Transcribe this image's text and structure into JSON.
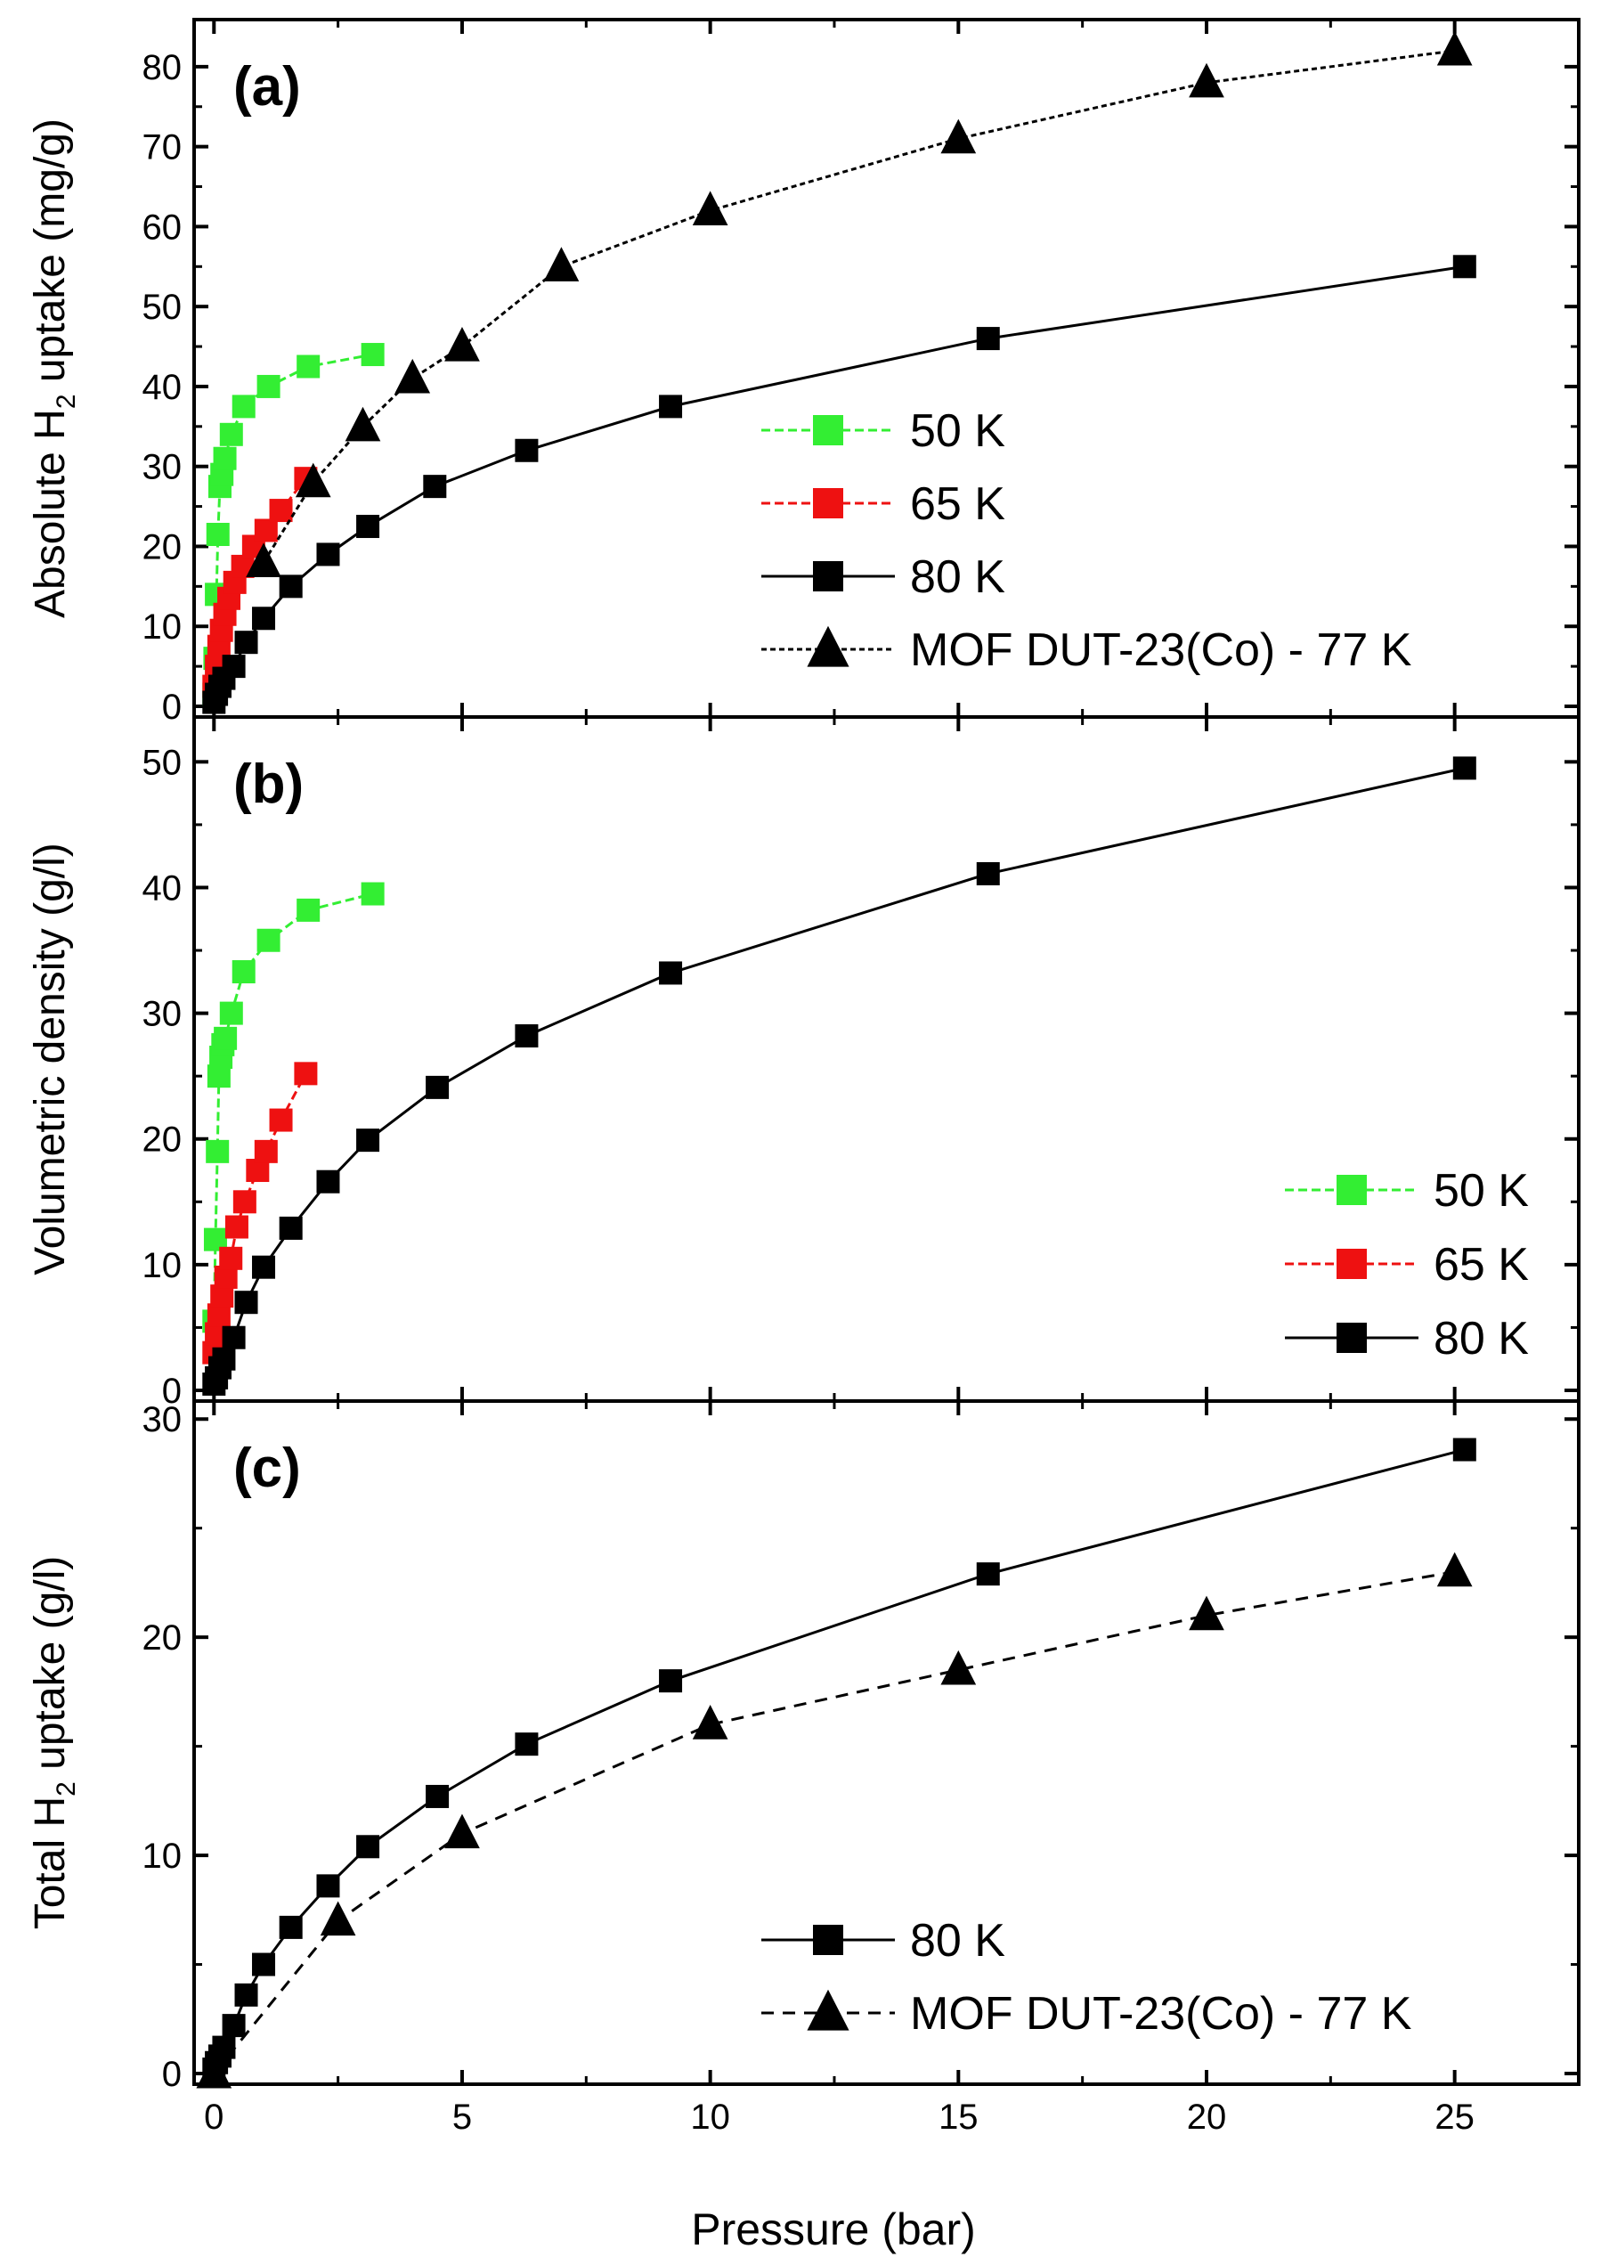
{
  "figure": {
    "xlabel": "Pressure (bar)",
    "xticks": [
      0,
      5,
      10,
      15,
      20,
      25
    ],
    "xlim": [
      -0.4,
      27.5
    ]
  },
  "chart_data": [
    {
      "type": "line",
      "panel_label": "(a)",
      "ylabel_parts": [
        "Absolute H",
        "2",
        " uptake (mg/g)"
      ],
      "ylim": [
        0,
        85
      ],
      "yticks": [
        0,
        10,
        20,
        30,
        40,
        50,
        60,
        70,
        80
      ],
      "legend_position": "middle-right",
      "series": [
        {
          "name": "50 K",
          "color": "#33ee33",
          "marker": "square",
          "dash": "10,5",
          "legend": true,
          "x": [
            0.0,
            0.02,
            0.05,
            0.08,
            0.12,
            0.16,
            0.22,
            0.35,
            0.6,
            1.1,
            1.9,
            3.2
          ],
          "y": [
            1.5,
            6,
            14,
            21.5,
            27.5,
            29,
            31,
            34,
            37.5,
            40,
            42.5,
            44
          ]
        },
        {
          "name": "65 K",
          "color": "#ee1111",
          "marker": "square",
          "dash": "10,5",
          "legend": true,
          "x": [
            0.0,
            0.05,
            0.1,
            0.15,
            0.22,
            0.3,
            0.42,
            0.58,
            0.8,
            1.05,
            1.35,
            1.85
          ],
          "y": [
            2.5,
            5,
            7.5,
            9.5,
            11.5,
            13.5,
            15.5,
            17.5,
            20,
            22,
            24.5,
            28.5
          ]
        },
        {
          "name": "80 K",
          "color": "#000000",
          "marker": "square",
          "dash": "",
          "legend": true,
          "x": [
            0.0,
            0.05,
            0.12,
            0.2,
            0.4,
            0.65,
            1.0,
            1.55,
            2.3,
            3.1,
            4.45,
            6.3,
            9.2,
            15.6,
            25.2
          ],
          "y": [
            0.5,
            1.5,
            2.5,
            3.5,
            5,
            8,
            11,
            15,
            19,
            22.5,
            27.5,
            32,
            37.5,
            46,
            55
          ]
        },
        {
          "name": "MOF DUT-23(Co) - 77 K",
          "color": "#000000",
          "marker": "triangle",
          "dash": "6,4",
          "legend": true,
          "x": [
            1.0,
            2.0,
            3.0,
            4.0,
            5.0,
            7.0,
            10.0,
            15.0,
            20.0,
            25.0
          ],
          "y": [
            18,
            28,
            35,
            41,
            45,
            55,
            62,
            71,
            78,
            82
          ]
        }
      ]
    },
    {
      "type": "line",
      "panel_label": "(b)",
      "ylabel_parts": [
        "Volumetric density (g/l)"
      ],
      "ylim": [
        0,
        53
      ],
      "yticks": [
        0,
        10,
        20,
        30,
        40,
        50
      ],
      "legend_position": "lower-right",
      "series": [
        {
          "name": "50 K",
          "color": "#33ee33",
          "marker": "square",
          "dash": "10,5",
          "legend": true,
          "x": [
            0.0,
            0.03,
            0.07,
            0.1,
            0.14,
            0.18,
            0.23,
            0.35,
            0.6,
            1.1,
            1.9,
            3.2
          ],
          "y": [
            5.5,
            12,
            19,
            25,
            26.5,
            27.5,
            28,
            30,
            33.3,
            35.8,
            38.2,
            39.5
          ]
        },
        {
          "name": "65 K",
          "color": "#ee1111",
          "marker": "square",
          "dash": "10,5",
          "legend": true,
          "x": [
            0.0,
            0.05,
            0.1,
            0.16,
            0.24,
            0.34,
            0.46,
            0.62,
            0.88,
            1.05,
            1.35,
            1.85
          ],
          "y": [
            3,
            4.5,
            6,
            7.5,
            9,
            10.5,
            13,
            15,
            17.5,
            19,
            21.5,
            25.2
          ]
        },
        {
          "name": "80 K",
          "color": "#000000",
          "marker": "square",
          "dash": "",
          "legend": true,
          "x": [
            0.0,
            0.05,
            0.12,
            0.2,
            0.4,
            0.65,
            1.0,
            1.55,
            2.3,
            3.1,
            4.5,
            6.3,
            9.2,
            15.6,
            25.2
          ],
          "y": [
            0.5,
            1,
            1.8,
            2.5,
            4.2,
            7,
            9.8,
            12.9,
            16.6,
            19.9,
            24.1,
            28.2,
            33.2,
            41.1,
            49.5
          ]
        }
      ]
    },
    {
      "type": "line",
      "panel_label": "(c)",
      "ylabel_parts": [
        "Total H",
        "2",
        " uptake (g/l)"
      ],
      "ylim": [
        0,
        30.5
      ],
      "yticks": [
        0,
        10,
        20,
        30
      ],
      "legend_position": "lower-right",
      "series": [
        {
          "name": "80 K",
          "color": "#000000",
          "marker": "square",
          "dash": "",
          "legend": true,
          "x": [
            0.0,
            0.05,
            0.12,
            0.2,
            0.4,
            0.65,
            1.0,
            1.55,
            2.3,
            3.1,
            4.5,
            6.3,
            9.2,
            15.6,
            25.2
          ],
          "y": [
            0.2,
            0.5,
            0.8,
            1.2,
            2.2,
            3.6,
            5.0,
            6.7,
            8.6,
            10.4,
            12.7,
            15.1,
            18.0,
            22.9,
            28.6
          ]
        },
        {
          "name": "MOF DUT-23(Co) - 77 K",
          "color": "#000000",
          "marker": "triangle",
          "dash": "14,10",
          "legend": true,
          "x": [
            0.0,
            2.5,
            5.0,
            10.0,
            15.0,
            20.0,
            25.0
          ],
          "y": [
            0,
            7,
            11,
            16,
            18.5,
            21,
            23
          ]
        }
      ]
    }
  ]
}
